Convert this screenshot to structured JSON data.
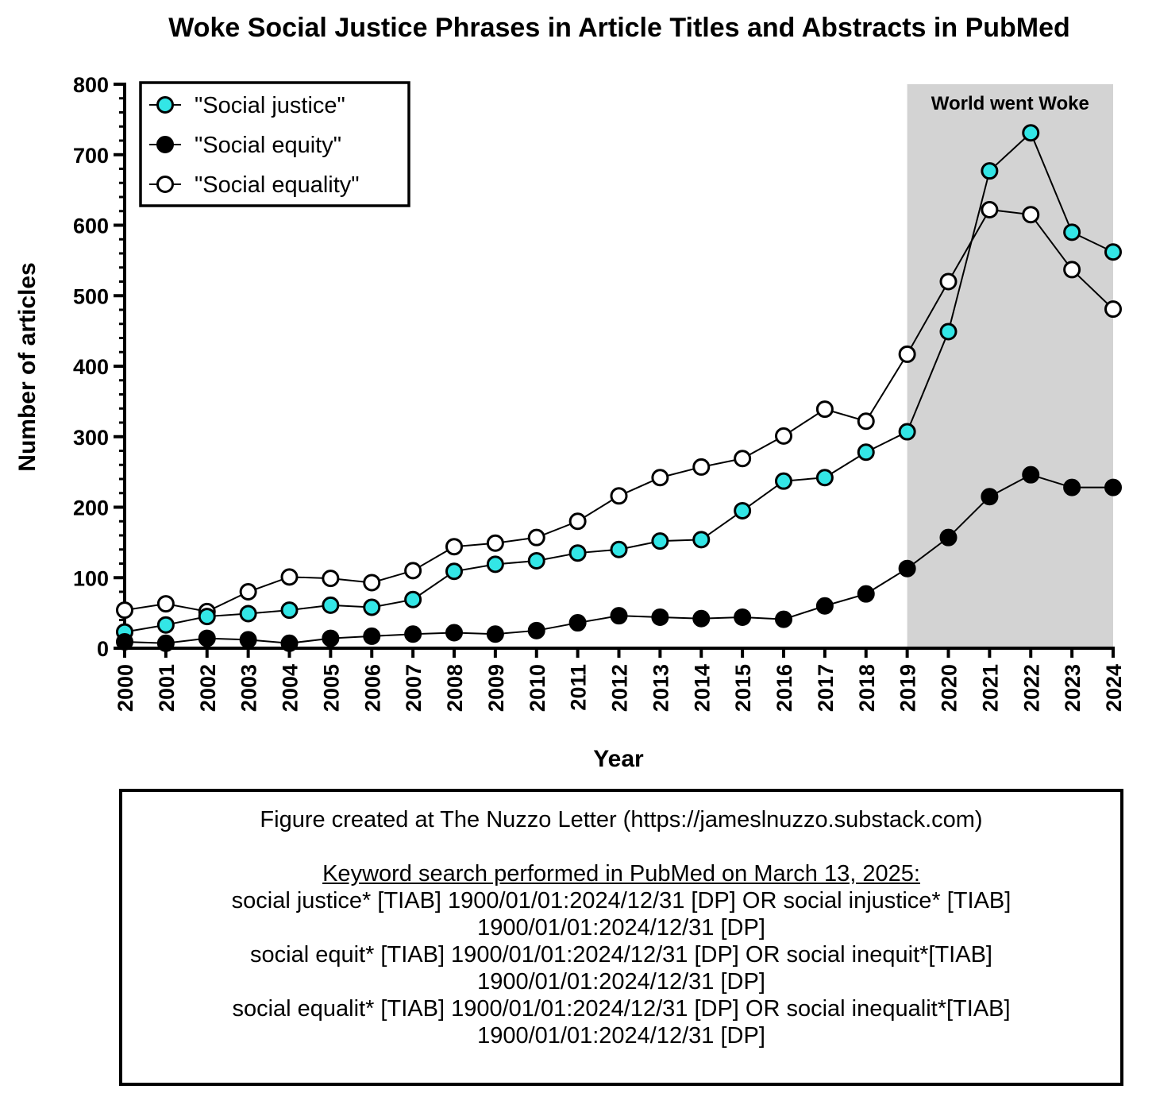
{
  "chart_data": {
    "type": "line",
    "title": "Woke Social Justice Phrases in Article Titles and Abstracts in PubMed",
    "xlabel": "Year",
    "ylabel": "Number of articles",
    "ylim": [
      0,
      800
    ],
    "yticks": [
      0,
      100,
      200,
      300,
      400,
      500,
      600,
      700,
      800
    ],
    "legend_position": "top-left",
    "grid": false,
    "x": [
      2000,
      2001,
      2002,
      2003,
      2004,
      2005,
      2006,
      2007,
      2008,
      2009,
      2010,
      2011,
      2012,
      2013,
      2014,
      2015,
      2016,
      2017,
      2018,
      2019,
      2020,
      2021,
      2022,
      2023,
      2024
    ],
    "x_labels": [
      "2000",
      "2001",
      "2002",
      "2003",
      "2004",
      "2005",
      "2006",
      "2007",
      "2008",
      "2009",
      "2010",
      "2011",
      "2012",
      "2013",
      "2014",
      "2015",
      "2016",
      "2017",
      "2018",
      "2019",
      "2020",
      "2021",
      "2022",
      "2023",
      "2024"
    ],
    "series": [
      {
        "name": "\"Social justice\"",
        "marker": "cyan-filled",
        "color": "#33E6E6",
        "values": [
          23,
          33,
          45,
          49,
          54,
          61,
          58,
          69,
          109,
          119,
          124,
          135,
          140,
          152,
          154,
          195,
          237,
          242,
          278,
          307,
          449,
          677,
          731,
          590,
          562
        ]
      },
      {
        "name": "\"Social equity\"",
        "marker": "black-filled",
        "color": "#000000",
        "values": [
          9,
          7,
          14,
          12,
          7,
          14,
          17,
          20,
          22,
          20,
          25,
          36,
          46,
          44,
          42,
          44,
          41,
          60,
          77,
          113,
          157,
          215,
          246,
          228,
          228
        ]
      },
      {
        "name": "\"Social equality\"",
        "marker": "white-filled",
        "color": "#FFFFFF",
        "values": [
          54,
          63,
          52,
          80,
          101,
          99,
          93,
          110,
          144,
          149,
          157,
          180,
          216,
          242,
          257,
          269,
          301,
          339,
          322,
          417,
          520,
          622,
          615,
          537,
          481
        ]
      }
    ],
    "shaded_region": {
      "x_start": 2019,
      "x_end": 2024,
      "label": "World went Woke",
      "color": "#D3D3D3"
    }
  },
  "note": {
    "credit": "Figure created at The Nuzzo Letter (https://jameslnuzzo.substack.com)",
    "heading": "Keyword search performed in PubMed on March 13, 2025:",
    "lines": [
      "social justice* [TIAB] 1900/01/01:2024/12/31 [DP] OR social injustice* [TIAB]",
      "1900/01/01:2024/12/31 [DP]",
      "social equit* [TIAB] 1900/01/01:2024/12/31 [DP] OR social inequit*[TIAB]",
      "1900/01/01:2024/12/31 [DP]",
      "social equalit* [TIAB] 1900/01/01:2024/12/31 [DP] OR social inequalit*[TIAB]",
      "1900/01/01:2024/12/31 [DP]"
    ]
  }
}
